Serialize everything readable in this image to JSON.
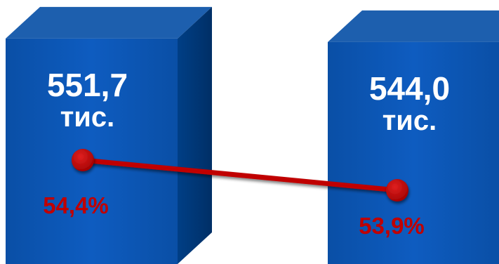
{
  "chart_data": {
    "type": "bar",
    "categories": [
      "",
      ""
    ],
    "series": [
      {
        "values": [
          551.7,
          544.0
        ],
        "labels": [
          [
            "551,7",
            "тис."
          ],
          [
            "544,0",
            "тис."
          ]
        ],
        "style": "3d-column"
      },
      {
        "values": [
          54.4,
          53.9
        ],
        "labels": [
          "54,4%",
          "53,9%"
        ],
        "style": "line-marker"
      }
    ],
    "colors": {
      "bar_front": "#0b57b4",
      "bar_side": "#003a7a",
      "bar_top": "#1d5fae",
      "line": "#c00000",
      "marker": "#c00000",
      "pct_text": "#c00000",
      "value_text": "#ffffff"
    },
    "legend": "none",
    "grid": false
  }
}
